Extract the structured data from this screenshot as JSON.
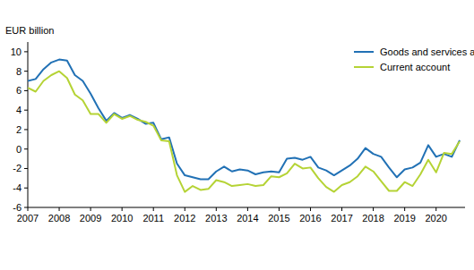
{
  "chart_data": {
    "type": "line",
    "ylabel": "EUR billion",
    "categories": [
      "2007",
      null,
      null,
      null,
      "2008",
      null,
      null,
      null,
      "2009",
      null,
      null,
      null,
      "2010",
      null,
      null,
      null,
      "2011",
      null,
      null,
      null,
      "2012",
      null,
      null,
      null,
      "2013",
      null,
      null,
      null,
      "2014",
      null,
      null,
      null,
      "2015",
      null,
      null,
      null,
      "2016",
      null,
      null,
      null,
      "2017",
      null,
      null,
      null,
      "2018",
      null,
      null,
      null,
      "2019",
      null,
      null,
      null,
      "2020",
      null,
      null,
      null
    ],
    "series": [
      {
        "name": "Goods and services account",
        "color": "#2171b5",
        "values": [
          7.0,
          7.2,
          8.2,
          8.9,
          9.2,
          9.1,
          7.6,
          7.0,
          5.7,
          4.2,
          2.9,
          3.7,
          3.2,
          3.5,
          3.1,
          2.6,
          2.7,
          1.0,
          1.2,
          -1.5,
          -2.7,
          -2.9,
          -3.1,
          -3.1,
          -2.3,
          -1.8,
          -2.3,
          -2.1,
          -2.2,
          -2.6,
          -2.4,
          -2.3,
          -2.4,
          -1.0,
          -0.9,
          -1.1,
          -0.8,
          -1.9,
          -2.2,
          -2.7,
          -2.2,
          -1.7,
          -1.0,
          0.1,
          -0.5,
          -0.8,
          -1.9,
          -2.9,
          -2.1,
          -1.9,
          -1.4,
          0.4,
          -0.8,
          -0.5,
          -0.8,
          0.9
        ]
      },
      {
        "name": "Current account",
        "color": "#b5d335",
        "values": [
          6.3,
          5.9,
          7.0,
          7.6,
          8.0,
          7.3,
          5.6,
          5.0,
          3.6,
          3.6,
          2.7,
          3.6,
          3.1,
          3.4,
          3.0,
          2.8,
          2.4,
          0.9,
          0.8,
          -2.7,
          -4.4,
          -3.8,
          -4.2,
          -4.1,
          -3.2,
          -3.4,
          -3.8,
          -3.7,
          -3.6,
          -3.8,
          -3.7,
          -2.8,
          -2.9,
          -2.5,
          -1.5,
          -2.0,
          -1.9,
          -3.0,
          -3.9,
          -4.4,
          -3.7,
          -3.4,
          -2.8,
          -1.8,
          -2.3,
          -3.3,
          -4.3,
          -4.3,
          -3.4,
          -3.8,
          -2.6,
          -1.1,
          -2.4,
          -0.4,
          -0.5,
          0.8
        ]
      }
    ],
    "ylim": [
      -6,
      11
    ],
    "yticks": [
      -6,
      -4,
      -2,
      0,
      2,
      4,
      6,
      8,
      10
    ],
    "grid": false,
    "legend": "top-right"
  }
}
